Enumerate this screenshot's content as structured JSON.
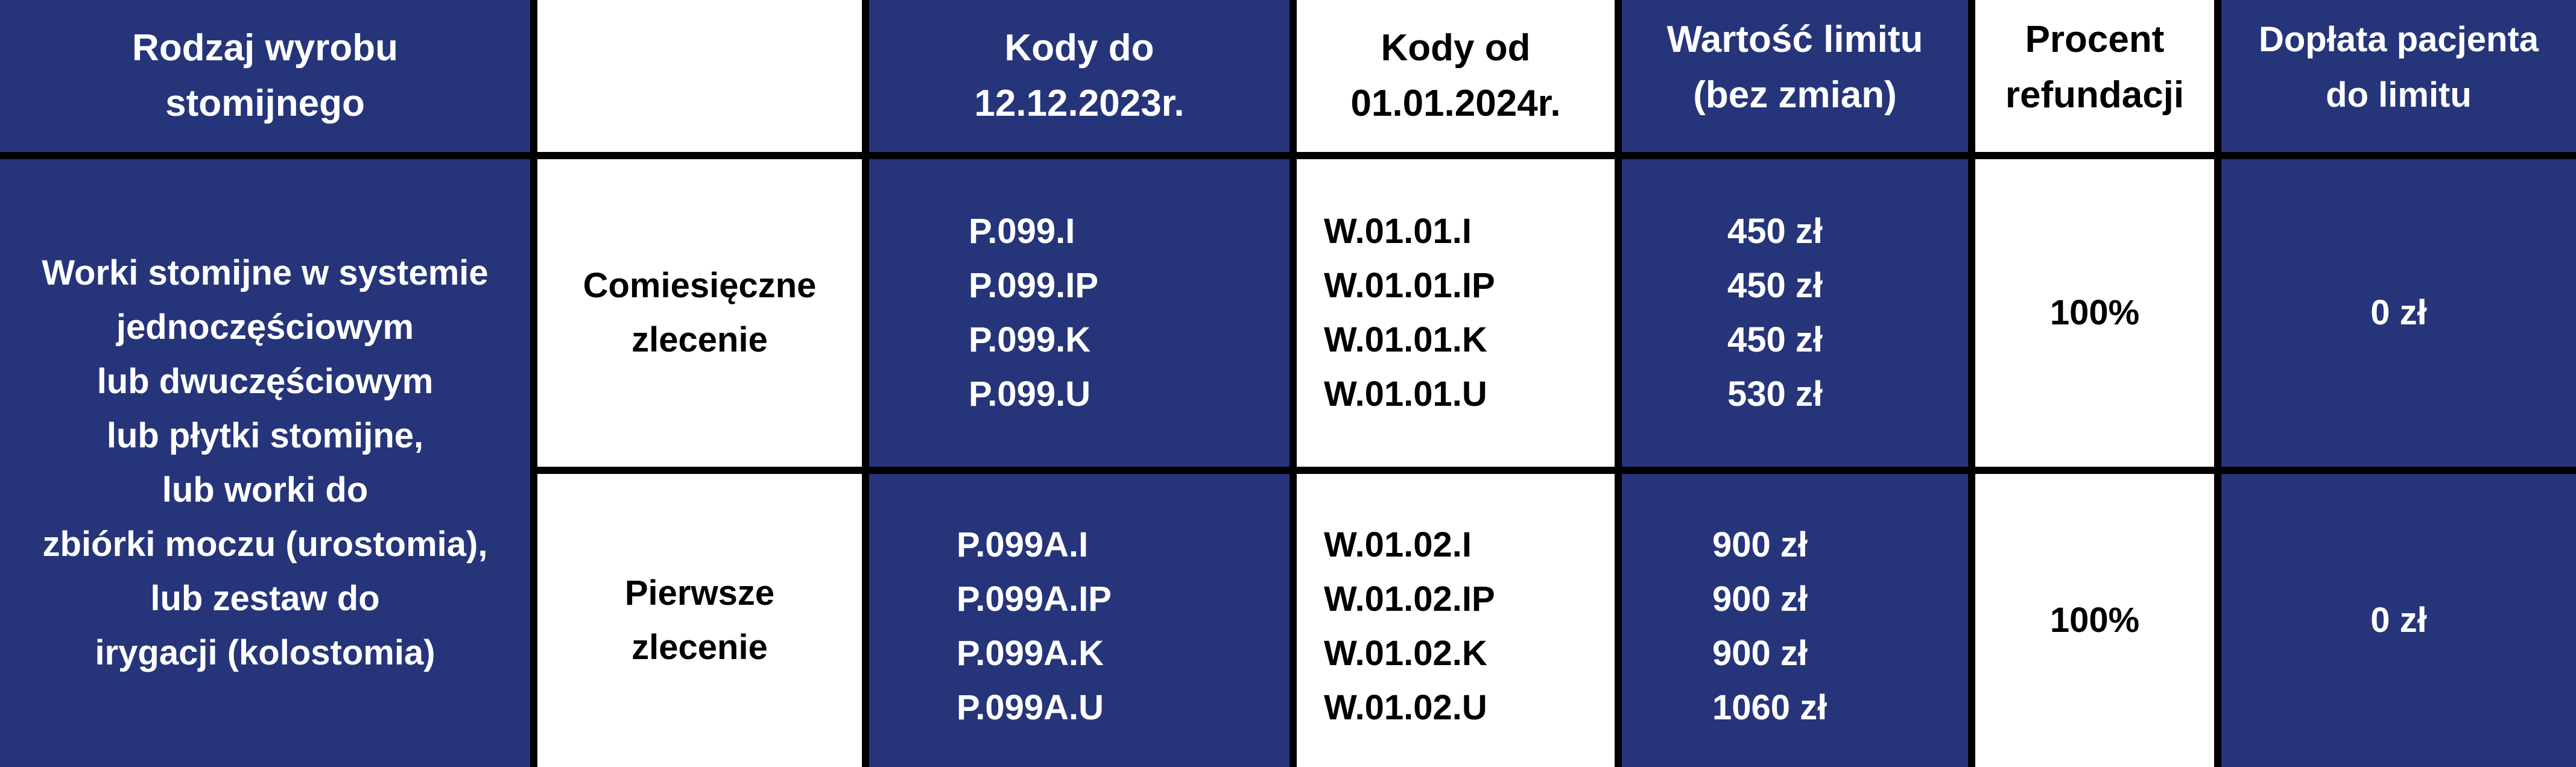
{
  "header": {
    "product_type": [
      "Rodzaj wyrobu",
      "stomijnego"
    ],
    "empty": "",
    "codes_old": [
      "Kody do",
      "12.12.2023r."
    ],
    "codes_new": [
      "Kody od",
      "01.01.2024r."
    ],
    "limit_value": [
      "Wartość limitu",
      "(bez zmian)"
    ],
    "refund_percent": [
      "Procent",
      "refundacji"
    ],
    "patient_copay": [
      "Dopłata pacjenta",
      "do limitu"
    ]
  },
  "product_description": [
    "Worki stomijne w systemie",
    "jednoczęściowym",
    "lub dwuczęściowym",
    "lub płytki stomijne,",
    "lub worki do",
    "zbiórki moczu (urostomia),",
    "lub zestaw do",
    "irygacji (kolostomia)"
  ],
  "rows": [
    {
      "order_type": [
        "Comiesięczne",
        "zlecenie"
      ],
      "codes_old": [
        "P.099.I",
        "P.099.IP",
        "P.099.K",
        "P.099.U"
      ],
      "codes_new": [
        "W.01.01.I",
        "W.01.01.IP",
        "W.01.01.K",
        "W.01.01.U"
      ],
      "limits": [
        "450 zł",
        "450 zł",
        "450 zł",
        "530 zł"
      ],
      "refund_percent": "100%",
      "patient_copay": "0 zł"
    },
    {
      "order_type": [
        "Pierwsze",
        "zlecenie"
      ],
      "codes_old": [
        "P.099A.I",
        "P.099A.IP",
        "P.099A.K",
        "P.099A.U"
      ],
      "codes_new": [
        "W.01.02.I",
        "W.01.02.IP",
        "W.01.02.K",
        "W.01.02.U"
      ],
      "limits": [
        "900 zł",
        "900 zł",
        "900 zł",
        "1060 zł"
      ],
      "refund_percent": "100%",
      "patient_copay": "0 zł"
    }
  ],
  "colors": {
    "blue": "#26357a",
    "white": "#ffffff",
    "border": "#000000"
  }
}
